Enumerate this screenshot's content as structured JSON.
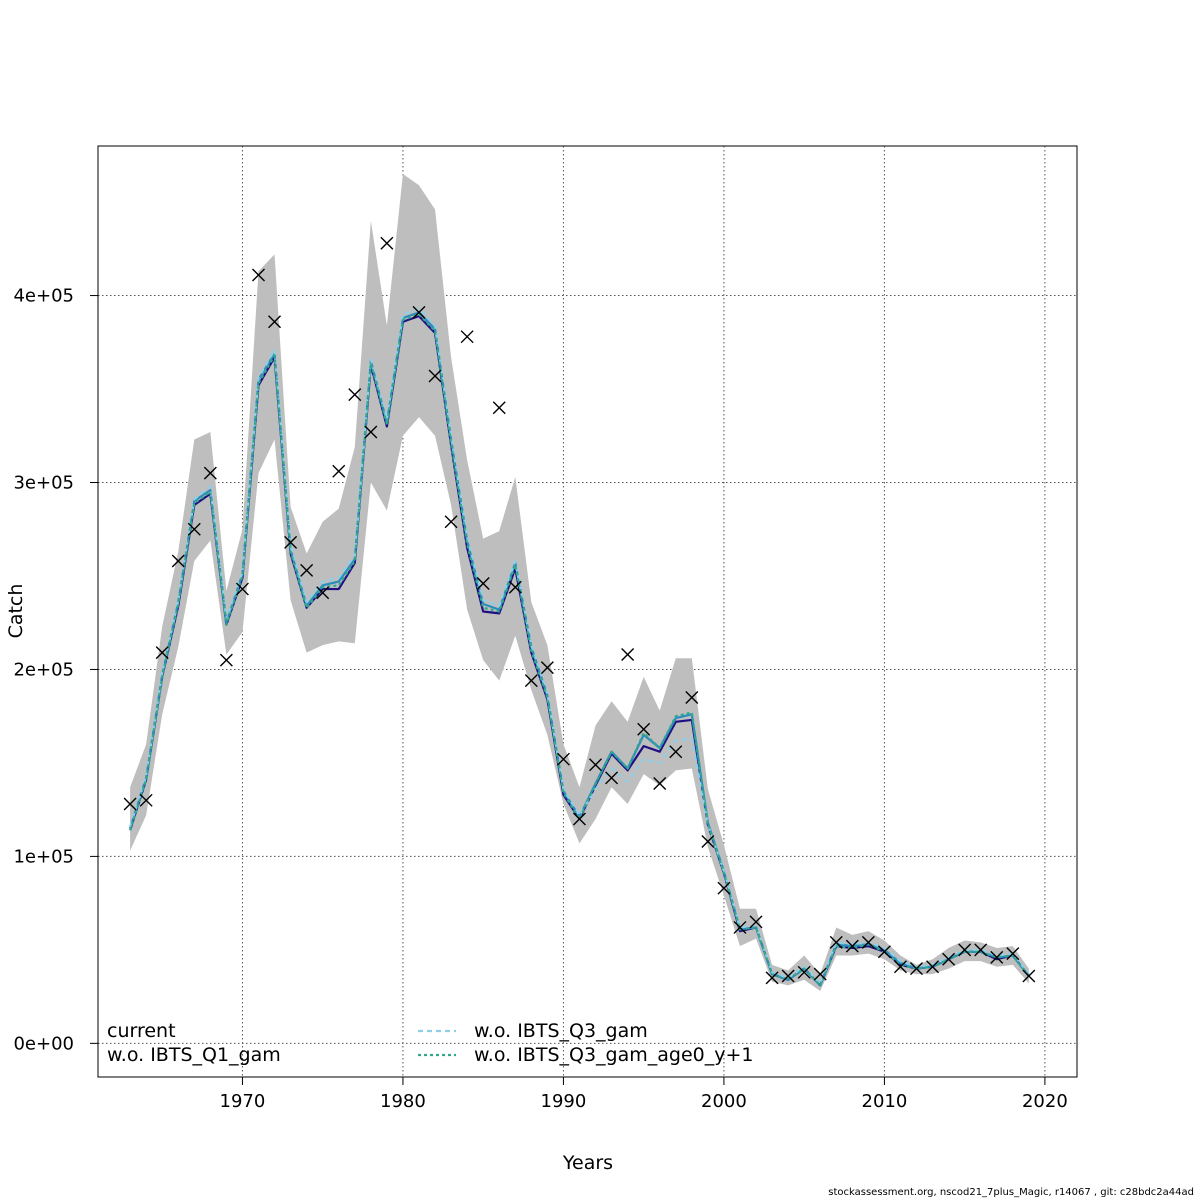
{
  "footer": "stockassessment.org, nscod21_7plus_Magic, r14067 , git: c28bdc2a44ad",
  "chart_data": {
    "type": "line",
    "title": "",
    "xlabel": "Years",
    "ylabel": "Catch",
    "xlim": [
      1961,
      2022
    ],
    "ylim": [
      -18000,
      480000
    ],
    "grid": true,
    "x_ticks": [
      1970,
      1980,
      1990,
      2000,
      2010,
      2020
    ],
    "y_ticks": [
      0,
      100000,
      200000,
      300000,
      400000
    ],
    "y_tick_labels": [
      "0e+00",
      "1e+05",
      "2e+05",
      "3e+05",
      "4e+05"
    ],
    "legend_position": "bottom",
    "years": [
      1963,
      1964,
      1965,
      1966,
      1967,
      1968,
      1969,
      1970,
      1971,
      1972,
      1973,
      1974,
      1975,
      1976,
      1977,
      1978,
      1979,
      1980,
      1981,
      1982,
      1983,
      1984,
      1985,
      1986,
      1987,
      1988,
      1989,
      1990,
      1991,
      1992,
      1993,
      1994,
      1995,
      1996,
      1997,
      1998,
      1999,
      2000,
      2001,
      2002,
      2003,
      2004,
      2005,
      2006,
      2007,
      2008,
      2009,
      2010,
      2011,
      2012,
      2013,
      2014,
      2015,
      2016,
      2017,
      2018,
      2019
    ],
    "band": {
      "color": "#bebebe",
      "lower": [
        103000,
        122000,
        176000,
        212000,
        258000,
        269000,
        208000,
        220000,
        305000,
        323000,
        237000,
        209000,
        213000,
        215000,
        214000,
        300000,
        285000,
        325000,
        335000,
        325000,
        288000,
        232000,
        205000,
        194000,
        218000,
        189000,
        165000,
        128000,
        107000,
        120000,
        137000,
        128000,
        144000,
        138000,
        146000,
        147000,
        105000,
        79000,
        52000,
        56000,
        33000,
        31000,
        34000,
        28000,
        47000,
        47000,
        48000,
        45000,
        39000,
        37000,
        37000,
        40000,
        44000,
        44000,
        41000,
        42000,
        32000
      ],
      "upper": [
        137000,
        160000,
        223000,
        263000,
        323000,
        327000,
        242000,
        275000,
        413000,
        422000,
        287000,
        262000,
        279000,
        286000,
        319000,
        440000,
        384000,
        465000,
        459000,
        446000,
        367000,
        312000,
        270000,
        274000,
        303000,
        236000,
        213000,
        160000,
        137000,
        170000,
        183000,
        172000,
        196000,
        178000,
        206000,
        206000,
        136000,
        106000,
        72000,
        72000,
        42000,
        39000,
        47000,
        37000,
        62000,
        58000,
        60000,
        55000,
        47000,
        42000,
        45000,
        51000,
        55000,
        54000,
        51000,
        52000,
        40000
      ]
    },
    "series": [
      {
        "name": "current",
        "color": "#1f0f82",
        "dash": "",
        "values": [
          114000,
          141000,
          196000,
          234000,
          288000,
          294000,
          224000,
          249000,
          352000,
          367000,
          262000,
          233000,
          243000,
          243000,
          257000,
          363000,
          330000,
          386000,
          389000,
          380000,
          320000,
          265000,
          231000,
          230000,
          254000,
          209000,
          184000,
          133000,
          120000,
          138000,
          155000,
          146000,
          159000,
          156000,
          172000,
          173000,
          117000,
          91000,
          60000,
          62000,
          37000,
          34000,
          40000,
          31000,
          52000,
          51000,
          52000,
          49000,
          42000,
          40000,
          41000,
          45000,
          49000,
          49000,
          45000,
          47000,
          36000
        ]
      },
      {
        "name": "w.o. IBTS_Q1_gam",
        "color": "#2b8cbe",
        "dash": "",
        "values": [
          115000,
          142000,
          197000,
          236000,
          290000,
          296000,
          225000,
          251000,
          355000,
          369000,
          264000,
          234000,
          245000,
          247000,
          259000,
          365000,
          332000,
          388000,
          391000,
          382000,
          323000,
          269000,
          235000,
          232000,
          257000,
          212000,
          186000,
          135000,
          121000,
          139000,
          156000,
          147000,
          165000,
          158000,
          174000,
          176000,
          118000,
          92000,
          61000,
          62000,
          37000,
          34000,
          40000,
          31000,
          53000,
          52000,
          53000,
          50000,
          43000,
          40000,
          41000,
          45000,
          49000,
          49000,
          46000,
          47000,
          36000
        ]
      },
      {
        "name": "w.o. IBTS_Q3_gam",
        "color": "#8ecfe8",
        "dash": "5,4",
        "values": [
          116000,
          143000,
          198000,
          237000,
          291000,
          298000,
          227000,
          252000,
          356000,
          371000,
          266000,
          236000,
          247000,
          249000,
          261000,
          366000,
          334000,
          390000,
          393000,
          384000,
          325000,
          271000,
          237000,
          234000,
          258000,
          213000,
          187000,
          136000,
          122000,
          136000,
          147000,
          140000,
          152000,
          150000,
          162000,
          163000,
          117000,
          92000,
          62000,
          63000,
          38000,
          35000,
          41000,
          32000,
          54000,
          53000,
          54000,
          51000,
          44000,
          41000,
          42000,
          46000,
          50000,
          50000,
          47000,
          48000,
          37000
        ]
      },
      {
        "name": "w.o. IBTS_Q3_gam_age0_y+1",
        "color": "#31a88a",
        "dash": "3,3",
        "values": [
          114000,
          141000,
          196000,
          235000,
          289000,
          295000,
          224000,
          250000,
          353000,
          368000,
          263000,
          233000,
          244000,
          245000,
          258000,
          364000,
          331000,
          387000,
          390000,
          381000,
          321000,
          267000,
          233000,
          231000,
          256000,
          210000,
          185000,
          134000,
          120000,
          139000,
          156000,
          147000,
          166000,
          158000,
          175000,
          177000,
          118000,
          91000,
          61000,
          62000,
          37000,
          34000,
          40000,
          31000,
          52000,
          51000,
          53000,
          49000,
          42000,
          40000,
          41000,
          45000,
          49000,
          49000,
          46000,
          47000,
          36000
        ]
      }
    ],
    "observed": {
      "marker": "x",
      "years": [
        1963,
        1964,
        1965,
        1966,
        1967,
        1968,
        1969,
        1970,
        1971,
        1972,
        1973,
        1974,
        1975,
        1976,
        1977,
        1978,
        1979,
        1981,
        1982,
        1983,
        1984,
        1985,
        1986,
        1987,
        1988,
        1989,
        1990,
        1991,
        1992,
        1993,
        1994,
        1995,
        1996,
        1997,
        1998,
        1999,
        2000,
        2001,
        2002,
        2003,
        2004,
        2005,
        2006,
        2007,
        2008,
        2009,
        2010,
        2011,
        2012,
        2013,
        2014,
        2015,
        2016,
        2017,
        2018,
        2019
      ],
      "values": [
        128000,
        130000,
        209000,
        258000,
        275000,
        305000,
        205000,
        243000,
        411000,
        386000,
        268000,
        253000,
        241000,
        306000,
        347000,
        327000,
        428000,
        391000,
        357000,
        279000,
        378000,
        246000,
        340000,
        244000,
        194000,
        201000,
        152000,
        120000,
        149000,
        142000,
        208000,
        168000,
        139000,
        156000,
        185000,
        108000,
        83000,
        62000,
        65000,
        35000,
        36000,
        38000,
        37000,
        54000,
        52000,
        54000,
        49000,
        41000,
        40000,
        41000,
        45000,
        50000,
        50000,
        46000,
        48000,
        36000
      ]
    }
  }
}
